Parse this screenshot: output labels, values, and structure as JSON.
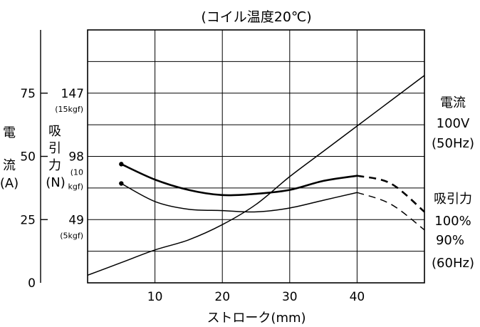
{
  "chart_data": {
    "type": "line",
    "title": "(コイル温度20℃)",
    "xlabel": "ストローク(mm)",
    "xlim": [
      0,
      50
    ],
    "x_ticks": [
      "10",
      "20",
      "30",
      "40"
    ],
    "x_tick_values": [
      10,
      20,
      30,
      40
    ],
    "grid": true,
    "y_right": {
      "label_lines": [
        "吸",
        "引",
        "力",
        "(N)"
      ],
      "ylim": [
        0,
        196
      ],
      "ticks": [
        "49",
        "98",
        "147"
      ],
      "tick_values": [
        49,
        98,
        147
      ],
      "kgf_labels": [
        "(5kgf)",
        "(10\nkgf)",
        "(15kgf)"
      ]
    },
    "y_left": {
      "label_lines": [
        "電",
        "流",
        "(A)"
      ],
      "ylim": [
        0,
        100
      ],
      "ticks": [
        "0",
        "25",
        "50",
        "75"
      ],
      "tick_values": [
        0,
        25,
        50,
        75
      ]
    },
    "series": [
      {
        "name": "電流 100V (50Hz)",
        "axis": "current",
        "style": "solid",
        "x": [
          0,
          5,
          10,
          15,
          20,
          25,
          30,
          35,
          40,
          45,
          50
        ],
        "y": [
          3,
          8,
          13,
          17,
          23,
          31,
          42,
          52,
          62,
          72,
          82
        ]
      },
      {
        "name": "吸引力 100%",
        "axis": "force",
        "style": "bold",
        "marker_at_start": true,
        "x": [
          5,
          10,
          15,
          20,
          25,
          30,
          35,
          40,
          45,
          50
        ],
        "y": [
          92,
          80,
          72,
          68,
          69,
          72,
          79,
          83,
          77,
          55
        ],
        "dashed_from_x": 40
      },
      {
        "name": "吸引力 90%",
        "axis": "force",
        "style": "thin",
        "marker_at_start": true,
        "x": [
          5,
          10,
          15,
          20,
          25,
          30,
          35,
          40,
          45,
          50
        ],
        "y": [
          77,
          63,
          57,
          56,
          55,
          58,
          64,
          70,
          61,
          41
        ],
        "dashed_from_x": 40
      }
    ],
    "annotations": {
      "current_label": [
        "電流",
        "100V",
        "(50Hz)"
      ],
      "force_label": [
        "吸引力",
        "100%",
        "90%",
        "(60Hz)"
      ]
    }
  }
}
